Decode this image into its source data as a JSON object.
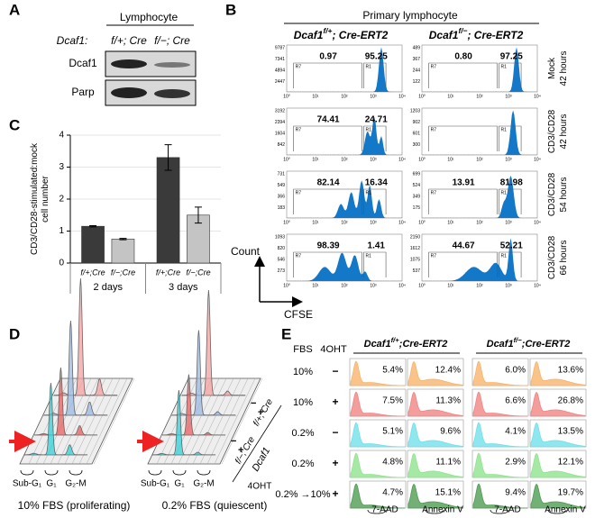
{
  "panels": {
    "A": {
      "label": "A",
      "header": "Lymphocyte",
      "row_label": "Dcaf1:",
      "lanes": [
        "f/+; Cre",
        "f/−; Cre"
      ],
      "blots": [
        "Dcaf1",
        "Parp"
      ]
    },
    "B": {
      "label": "B",
      "title": "Primary lymphocyte",
      "columns": [
        {
          "gene": "Dcaf1",
          "allele": "f/+",
          "suffix": "; Cre-ERT2"
        },
        {
          "gene": "Dcaf1",
          "allele": "f/−",
          "suffix": "; Cre-ERT2"
        }
      ],
      "gates": [
        "R7",
        "R1"
      ],
      "xticks": [
        "10⁰",
        "10¹",
        "10²",
        "10³",
        "10⁴"
      ],
      "y_axis": "Count",
      "x_axis": "CFSE",
      "rows": [
        {
          "condition": "Mock",
          "time": "42 hours",
          "cells": [
            {
              "yticks": [
                "9787",
                "7341",
                "4894",
                "2447"
              ],
              "left": "0.97",
              "right": "95.25"
            },
            {
              "yticks": [
                "489",
                "367",
                "244",
                "122"
              ],
              "left": "0.80",
              "right": "97.25"
            }
          ]
        },
        {
          "condition": "CD3/CD28",
          "time": "42 hours",
          "cells": [
            {
              "yticks": [
                "3192",
                "2394",
                "1604",
                "842"
              ],
              "left": "74.41",
              "right": "24.71"
            },
            {
              "yticks": [
                "1203",
                "902",
                "601",
                "300"
              ]
            }
          ]
        },
        {
          "condition": "CD3/CD28",
          "time": "54 hours",
          "cells": [
            {
              "yticks": [
                "731",
                "549",
                "366",
                "183"
              ],
              "left": "82.14",
              "right": "16.34"
            },
            {
              "yticks": [
                "699",
                "524",
                "349",
                "175"
              ],
              "left": "13.91",
              "right": "81.98"
            }
          ]
        },
        {
          "condition": "CD3/CD28",
          "time": "66 hours",
          "cells": [
            {
              "yticks": [
                "1093",
                "820",
                "546",
                "273"
              ],
              "left": "98.39",
              "right": "1.41"
            },
            {
              "yticks": [
                "2150",
                "1612",
                "1075",
                "537"
              ],
              "left": "44.67",
              "right": "52.21"
            }
          ]
        }
      ]
    },
    "C": {
      "label": "C",
      "y_label": [
        "CD3/CD28-stimulated:mock",
        "cell number"
      ],
      "ylim": [
        0,
        4
      ],
      "yticks": [
        0,
        1,
        2,
        3,
        4
      ],
      "categories": [
        "f/+;Cre",
        "f/−;Cre"
      ],
      "colors": [
        "#3a3a3a",
        "#c4c4c4"
      ],
      "groups": [
        {
          "name": "2 days",
          "values": [
            1.15,
            0.75
          ],
          "errors": [
            0.02,
            0.02
          ]
        },
        {
          "name": "3 days",
          "values": [
            3.3,
            1.5
          ],
          "errors": [
            0.4,
            0.25
          ]
        }
      ]
    },
    "D": {
      "label": "D",
      "phases": [
        "Sub-G₁",
        "G₁",
        "G₂-M"
      ],
      "captions": [
        "10% FBS (proliferating)",
        "0.2% FBS (quiescent)"
      ],
      "signs": [
        "+",
        "−",
        "+",
        "−"
      ],
      "genotypes": [
        "f/+; Cre",
        "f/−; Cre"
      ],
      "gene": "Dcaf1",
      "treatment": "4OHT"
    },
    "E": {
      "label": "E",
      "header": [
        "FBS",
        "4OHT"
      ],
      "columns": [
        {
          "gene": "Dcaf1",
          "allele": "f/+",
          "suffix": ";Cre-ERT2"
        },
        {
          "gene": "Dcaf1",
          "allele": "f/−",
          "suffix": ";Cre-ERT2"
        }
      ],
      "axes": [
        "7-AAD",
        "Annexin V"
      ],
      "rows": [
        {
          "fbs": "10%",
          "oht": "−",
          "color": "#f7b46c",
          "values": [
            "5.4%",
            "12.4%",
            "6.0%",
            "13.6%"
          ]
        },
        {
          "fbs": "10%",
          "oht": "+",
          "color": "#f08484",
          "values": [
            "7.5%",
            "11.3%",
            "6.6%",
            "26.8%"
          ]
        },
        {
          "fbs": "0.2%",
          "oht": "−",
          "color": "#72e0ea",
          "values": [
            "5.1%",
            "9.6%",
            "4.1%",
            "13.5%"
          ]
        },
        {
          "fbs": "0.2%",
          "oht": "+",
          "color": "#8ee48e",
          "values": [
            "4.8%",
            "11.1%",
            "2.9%",
            "12.1%"
          ]
        },
        {
          "fbs": "0.2% →10%",
          "oht": "+",
          "color": "#4f9c52",
          "values": [
            "4.7%",
            "15.1%",
            "9.4%",
            "19.7%"
          ]
        }
      ]
    }
  }
}
